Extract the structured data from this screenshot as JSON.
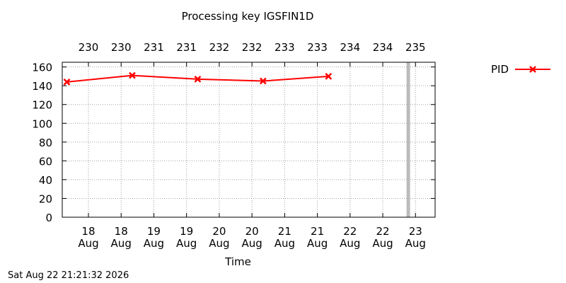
{
  "chart_data": {
    "type": "line",
    "title": "Processing key IGSFIN1D",
    "xlabel": "Time",
    "ylabel": "",
    "ylim": [
      0,
      165
    ],
    "yticks": [
      0,
      20,
      40,
      60,
      80,
      100,
      120,
      140,
      160
    ],
    "xlim": [
      17.6,
      23.3
    ],
    "xticks": [
      {
        "x": 18.0,
        "line1": "18",
        "line2": "Aug"
      },
      {
        "x": 18.5,
        "line1": "18",
        "line2": "Aug"
      },
      {
        "x": 19.0,
        "line1": "19",
        "line2": "Aug"
      },
      {
        "x": 19.5,
        "line1": "19",
        "line2": "Aug"
      },
      {
        "x": 20.0,
        "line1": "20",
        "line2": "Aug"
      },
      {
        "x": 20.5,
        "line1": "20",
        "line2": "Aug"
      },
      {
        "x": 21.0,
        "line1": "21",
        "line2": "Aug"
      },
      {
        "x": 21.5,
        "line1": "21",
        "line2": "Aug"
      },
      {
        "x": 22.0,
        "line1": "22",
        "line2": "Aug"
      },
      {
        "x": 22.5,
        "line1": "22",
        "line2": "Aug"
      },
      {
        "x": 23.0,
        "line1": "23",
        "line2": "Aug"
      }
    ],
    "x2ticks": [
      {
        "x": 18.0,
        "label": "230"
      },
      {
        "x": 18.5,
        "label": "230"
      },
      {
        "x": 19.0,
        "label": "231"
      },
      {
        "x": 19.5,
        "label": "231"
      },
      {
        "x": 20.0,
        "label": "232"
      },
      {
        "x": 20.5,
        "label": "232"
      },
      {
        "x": 21.0,
        "label": "233"
      },
      {
        "x": 21.5,
        "label": "233"
      },
      {
        "x": 22.0,
        "label": "234"
      },
      {
        "x": 22.5,
        "label": "234"
      },
      {
        "x": 23.0,
        "label": "235"
      }
    ],
    "grid": true,
    "legend": "top-right outside",
    "series": [
      {
        "name": "PID",
        "color": "#ff0000",
        "marker": "x",
        "x": [
          17.67,
          18.67,
          19.67,
          20.67,
          21.67
        ],
        "y": [
          144,
          151,
          147,
          145,
          150
        ]
      }
    ],
    "current_time_marker": {
      "x": 22.89,
      "color": "#bbbbbb"
    }
  },
  "footer": {
    "timestamp": "Sat Aug 22 21:21:32 2026"
  }
}
